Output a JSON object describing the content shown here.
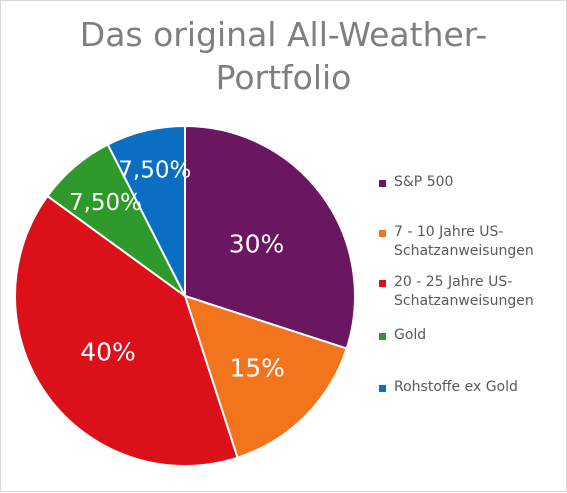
{
  "chart_data": {
    "type": "pie",
    "title": "Das original All-Weather-Portfolio",
    "legend_position": "right",
    "slices": [
      {
        "name": "S&P 500",
        "value": 30,
        "label": "30%",
        "color": "#6a1660"
      },
      {
        "name": "7 - 10 Jahre US-Schatzanweisungen",
        "value": 15,
        "label": "15%",
        "color": "#f2741c"
      },
      {
        "name": "20 - 25 Jahre US-Schatzanweisungen",
        "value": 40,
        "label": "40%",
        "color": "#dc1018"
      },
      {
        "name": "Gold",
        "value": 7.5,
        "label": "7,50%",
        "color": "#2e9a2c"
      },
      {
        "name": "Rohstoffe ex Gold",
        "value": 7.5,
        "label": "7,50%",
        "color": "#0a6fc2"
      }
    ]
  },
  "legend": {
    "items": [
      {
        "line1": "S&P 500",
        "line2": ""
      },
      {
        "line1": "7 - 10 Jahre US-",
        "line2": "Schatzanweisungen"
      },
      {
        "line1": "20 - 25 Jahre US-",
        "line2": "Schatzanweisungen"
      },
      {
        "line1": "Gold",
        "line2": ""
      },
      {
        "line1": "Rohstoffe ex Gold",
        "line2": ""
      }
    ]
  },
  "colors": {
    "title_text": "#7f7f7f",
    "legend_text": "#595959",
    "slice_label_text": "#ffffff",
    "slice_border": "#ffffff"
  }
}
